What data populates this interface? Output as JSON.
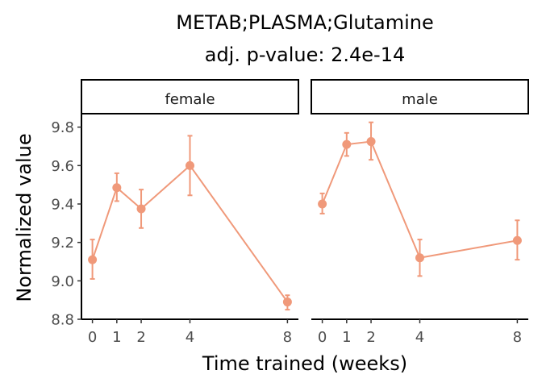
{
  "chart_data": {
    "type": "line",
    "title_line1": "METAB;PLASMA;Glutamine",
    "title_line2": "adj. p-value: 2.4e-14",
    "xlabel": "Time trained (weeks)",
    "ylabel": "Normalized value",
    "xlim": [
      -0.45,
      8.45
    ],
    "ylim": [
      8.8,
      9.87
    ],
    "x_ticks": [
      0,
      1,
      2,
      4,
      8
    ],
    "x_tick_labels": [
      "0",
      "1",
      "2",
      "4",
      "8"
    ],
    "y_ticks": [
      8.8,
      9.0,
      9.2,
      9.4,
      9.6,
      9.8
    ],
    "y_tick_labels": [
      "8.8",
      "9.0",
      "9.2",
      "9.4",
      "9.6",
      "9.8"
    ],
    "color": "#F0997A",
    "panels": [
      {
        "label": "female",
        "x": [
          0,
          1,
          2,
          4,
          8
        ],
        "y": [
          9.11,
          9.485,
          9.375,
          9.6,
          8.89
        ],
        "ymin": [
          9.01,
          9.415,
          9.275,
          9.445,
          8.85
        ],
        "ymax": [
          9.215,
          9.56,
          9.475,
          9.755,
          8.925
        ]
      },
      {
        "label": "male",
        "x": [
          0,
          1,
          2,
          4,
          8
        ],
        "y": [
          9.4,
          9.71,
          9.725,
          9.12,
          9.21
        ],
        "ymin": [
          9.35,
          9.65,
          9.63,
          9.025,
          9.11
        ],
        "ymax": [
          9.455,
          9.77,
          9.825,
          9.215,
          9.315
        ]
      }
    ]
  }
}
